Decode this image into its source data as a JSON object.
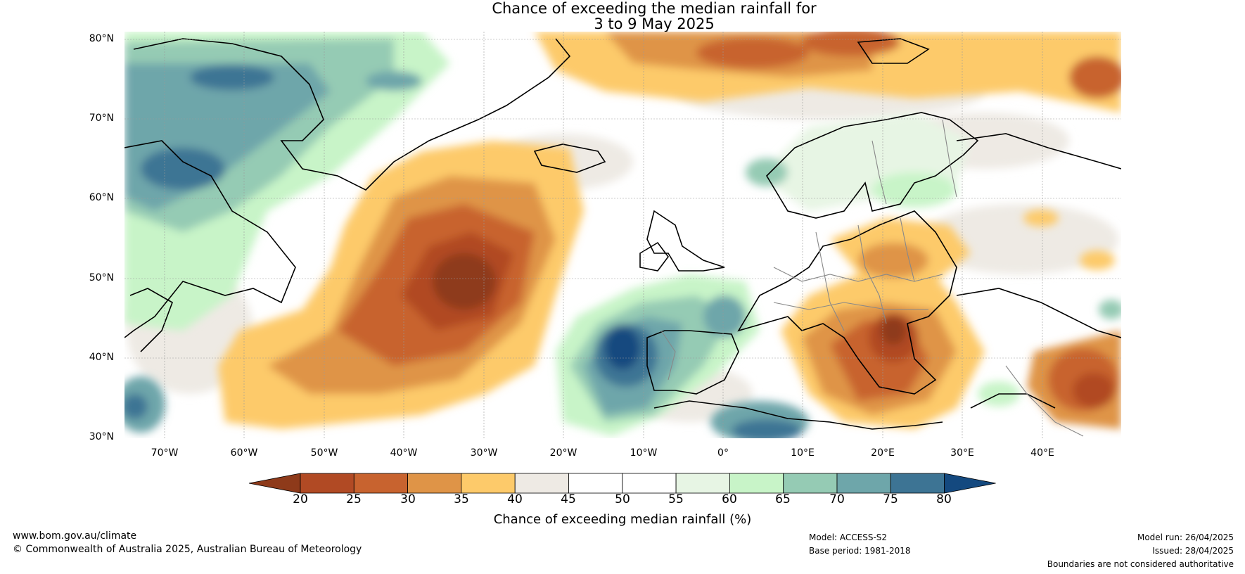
{
  "title": {
    "line1": "Chance of exceeding the median rainfall for",
    "line2": "3 to 9 May 2025"
  },
  "lat_labels": [
    "80°N",
    "70°N",
    "60°N",
    "50°N",
    "40°N",
    "30°N"
  ],
  "lon_labels": [
    "70°W",
    "60°W",
    "50°W",
    "40°W",
    "30°W",
    "20°W",
    "10°W",
    "0°",
    "10°E",
    "20°E",
    "30°E",
    "40°E"
  ],
  "colorbar": {
    "ticks": [
      "20",
      "25",
      "30",
      "35",
      "40",
      "45",
      "50",
      "55",
      "60",
      "65",
      "70",
      "75",
      "80"
    ],
    "colors": [
      "#8e3a1a",
      "#b14a24",
      "#c8632f",
      "#df9447",
      "#fdca6a",
      "#eeeae4",
      "#ffffff",
      "#ffffff",
      "#e7f5e4",
      "#c8f4c8",
      "#95cbb4",
      "#6ea6aa",
      "#3d7494",
      "#14497f"
    ],
    "label": "Chance of exceeding median rainfall (%)"
  },
  "footer": {
    "website": "www.bom.gov.au/climate",
    "copyright": "© Commonwealth of Australia 2025, Australian Bureau of Meteorology",
    "model": "Model: ACCESS-S2",
    "base_period": "Base period: 1981-2018",
    "model_run": "Model run: 26/04/2025",
    "issued": "Issued: 28/04/2025",
    "disclaimer": "Boundaries are not considered authoritative"
  }
}
